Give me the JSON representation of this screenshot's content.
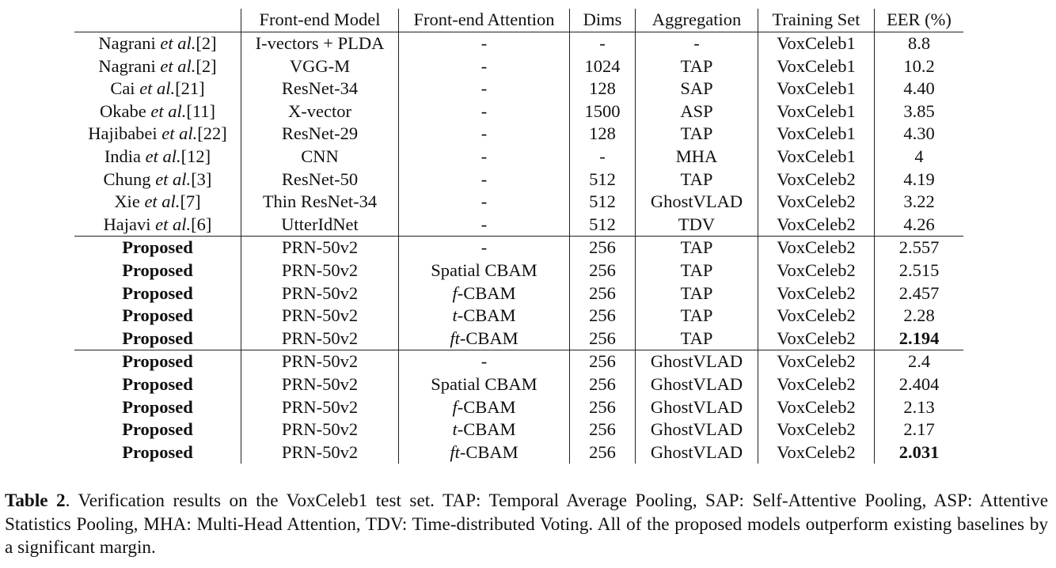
{
  "table": {
    "headers": [
      "",
      "Front-end Model",
      "Front-end Attention",
      "Dims",
      "Aggregation",
      "Training Set",
      "EER (%)"
    ],
    "groups": [
      {
        "rows": [
          {
            "method": {
              "name": "Nagrani",
              "etal": "et al.",
              "ref": "[2]"
            },
            "model": "I-vectors + PLDA",
            "attention": {
              "prefix": "",
              "text": "-"
            },
            "dims": "-",
            "aggregation": "-",
            "training_set": "VoxCeleb1",
            "eer": "8.8"
          },
          {
            "method": {
              "name": "Nagrani",
              "etal": "et al.",
              "ref": "[2]"
            },
            "model": "VGG-M",
            "attention": {
              "prefix": "",
              "text": "-"
            },
            "dims": "1024",
            "aggregation": "TAP",
            "training_set": "VoxCeleb1",
            "eer": "10.2"
          },
          {
            "method": {
              "name": "Cai",
              "etal": "et al.",
              "ref": "[21]"
            },
            "model": "ResNet-34",
            "attention": {
              "prefix": "",
              "text": "-"
            },
            "dims": "128",
            "aggregation": "SAP",
            "training_set": "VoxCeleb1",
            "eer": "4.40"
          },
          {
            "method": {
              "name": "Okabe",
              "etal": "et al.",
              "ref": "[11]"
            },
            "model": "X-vector",
            "attention": {
              "prefix": "",
              "text": "-"
            },
            "dims": "1500",
            "aggregation": "ASP",
            "training_set": "VoxCeleb1",
            "eer": "3.85"
          },
          {
            "method": {
              "name": "Hajibabei",
              "etal": "et al.",
              "ref": "[22]"
            },
            "model": "ResNet-29",
            "attention": {
              "prefix": "",
              "text": "-"
            },
            "dims": "128",
            "aggregation": "TAP",
            "training_set": "VoxCeleb1",
            "eer": "4.30"
          },
          {
            "method": {
              "name": "India",
              "etal": "et al.",
              "ref": "[12]"
            },
            "model": "CNN",
            "attention": {
              "prefix": "",
              "text": "-"
            },
            "dims": "-",
            "aggregation": "MHA",
            "training_set": "VoxCeleb1",
            "eer": "4"
          },
          {
            "method": {
              "name": "Chung",
              "etal": "et al.",
              "ref": "[3]"
            },
            "model": "ResNet-50",
            "attention": {
              "prefix": "",
              "text": "-"
            },
            "dims": "512",
            "aggregation": "TAP",
            "training_set": "VoxCeleb2",
            "eer": "4.19"
          },
          {
            "method": {
              "name": "Xie",
              "etal": "et al.",
              "ref": "[7]"
            },
            "model": "Thin ResNet-34",
            "attention": {
              "prefix": "",
              "text": "-"
            },
            "dims": "512",
            "aggregation": "GhostVLAD",
            "training_set": "VoxCeleb2",
            "eer": "3.22"
          },
          {
            "method": {
              "name": "Hajavi",
              "etal": "et al.",
              "ref": "[6]"
            },
            "model": "UtterIdNet",
            "attention": {
              "prefix": "",
              "text": "-"
            },
            "dims": "512",
            "aggregation": "TDV",
            "training_set": "VoxCeleb2",
            "eer": "4.26"
          }
        ]
      },
      {
        "rows": [
          {
            "method": {
              "name": "Proposed",
              "etal": "",
              "ref": ""
            },
            "model": "PRN-50v2",
            "attention": {
              "prefix": "",
              "text": "-"
            },
            "dims": "256",
            "aggregation": "TAP",
            "training_set": "VoxCeleb2",
            "eer": "2.557"
          },
          {
            "method": {
              "name": "Proposed",
              "etal": "",
              "ref": ""
            },
            "model": "PRN-50v2",
            "attention": {
              "prefix": "",
              "text": "Spatial CBAM"
            },
            "dims": "256",
            "aggregation": "TAP",
            "training_set": "VoxCeleb2",
            "eer": "2.515"
          },
          {
            "method": {
              "name": "Proposed",
              "etal": "",
              "ref": ""
            },
            "model": "PRN-50v2",
            "attention": {
              "prefix": "f",
              "text": "-CBAM"
            },
            "dims": "256",
            "aggregation": "TAP",
            "training_set": "VoxCeleb2",
            "eer": "2.457"
          },
          {
            "method": {
              "name": "Proposed",
              "etal": "",
              "ref": ""
            },
            "model": "PRN-50v2",
            "attention": {
              "prefix": "t",
              "text": "-CBAM"
            },
            "dims": "256",
            "aggregation": "TAP",
            "training_set": "VoxCeleb2",
            "eer": "2.28"
          },
          {
            "method": {
              "name": "Proposed",
              "etal": "",
              "ref": ""
            },
            "model": "PRN-50v2",
            "attention": {
              "prefix": "ft",
              "text": "-CBAM"
            },
            "dims": "256",
            "aggregation": "TAP",
            "training_set": "VoxCeleb2",
            "eer": "2.194",
            "eer_bold": true
          }
        ]
      },
      {
        "rows": [
          {
            "method": {
              "name": "Proposed",
              "etal": "",
              "ref": ""
            },
            "model": "PRN-50v2",
            "attention": {
              "prefix": "",
              "text": "-"
            },
            "dims": "256",
            "aggregation": "GhostVLAD",
            "training_set": "VoxCeleb2",
            "eer": "2.4"
          },
          {
            "method": {
              "name": "Proposed",
              "etal": "",
              "ref": ""
            },
            "model": "PRN-50v2",
            "attention": {
              "prefix": "",
              "text": "Spatial CBAM"
            },
            "dims": "256",
            "aggregation": "GhostVLAD",
            "training_set": "VoxCeleb2",
            "eer": "2.404"
          },
          {
            "method": {
              "name": "Proposed",
              "etal": "",
              "ref": ""
            },
            "model": "PRN-50v2",
            "attention": {
              "prefix": "f",
              "text": "-CBAM"
            },
            "dims": "256",
            "aggregation": "GhostVLAD",
            "training_set": "VoxCeleb2",
            "eer": "2.13"
          },
          {
            "method": {
              "name": "Proposed",
              "etal": "",
              "ref": ""
            },
            "model": "PRN-50v2",
            "attention": {
              "prefix": "t",
              "text": "-CBAM"
            },
            "dims": "256",
            "aggregation": "GhostVLAD",
            "training_set": "VoxCeleb2",
            "eer": "2.17"
          },
          {
            "method": {
              "name": "Proposed",
              "etal": "",
              "ref": ""
            },
            "model": "PRN-50v2",
            "attention": {
              "prefix": "ft",
              "text": "-CBAM"
            },
            "dims": "256",
            "aggregation": "GhostVLAD",
            "training_set": "VoxCeleb2",
            "eer": "2.031",
            "eer_bold": true
          }
        ]
      }
    ]
  },
  "caption": {
    "label": "Table 2",
    "text": ". Verification results on the VoxCeleb1 test set. TAP: Temporal Average Pooling, SAP: Self-Attentive Pooling, ASP: Attentive Statistics Pooling, MHA: Multi-Head Attention, TDV: Time-distributed Voting. All of the proposed models outperform existing baselines by a significant margin."
  }
}
